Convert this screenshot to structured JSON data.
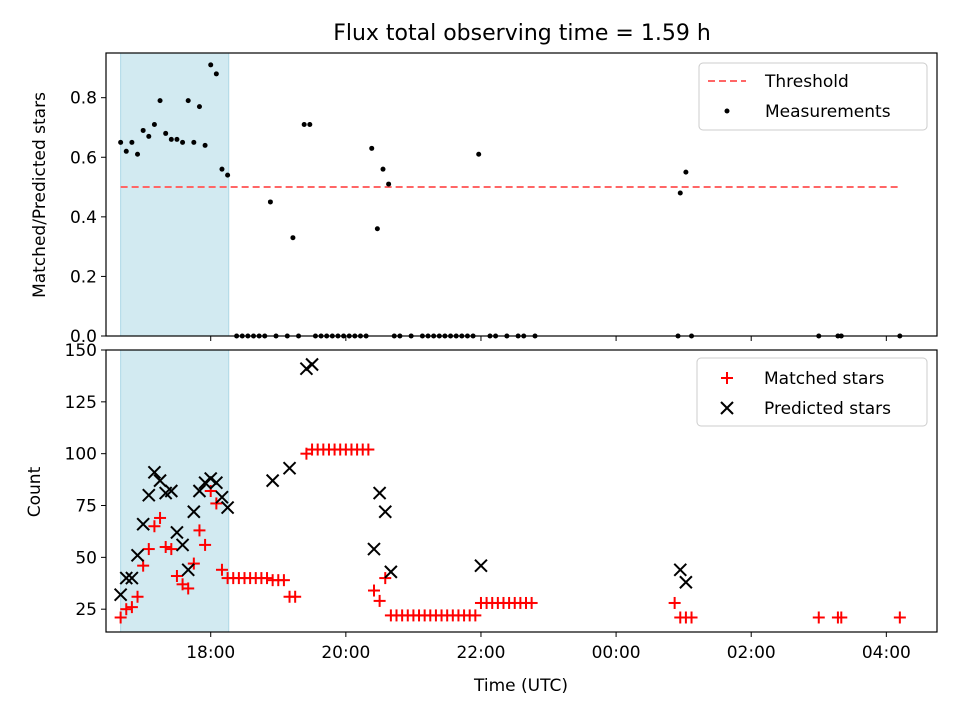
{
  "chart_data": [
    {
      "type": "scatter",
      "title": "Flux total observing time = 1.59 h",
      "ylabel": "Matched/Predicted stars",
      "xlabel": "",
      "xlim": [
        "16:27",
        "04:45"
      ],
      "ylim": [
        0,
        0.95
      ],
      "yticks": [
        "0.0",
        "0.2",
        "0.4",
        "0.6",
        "0.8"
      ],
      "ytick_values": [
        0,
        0.2,
        0.4,
        0.6,
        0.8
      ],
      "grid": false,
      "legend_position": "top-right",
      "highlight_band": {
        "start": "16:40",
        "end": "18:16",
        "color": "#add8e6"
      },
      "threshold": {
        "name": "Threshold",
        "value": 0.5,
        "start": "16:40",
        "end": "04:12",
        "color": "#ff6666",
        "style": "dashed"
      },
      "series": [
        {
          "name": "Measurements",
          "marker": "dot",
          "color": "#000000",
          "points": [
            [
              "16:40",
              0.65
            ],
            [
              "16:45",
              0.62
            ],
            [
              "16:50",
              0.65
            ],
            [
              "16:55",
              0.61
            ],
            [
              "17:00",
              0.69
            ],
            [
              "17:05",
              0.67
            ],
            [
              "17:10",
              0.71
            ],
            [
              "17:15",
              0.79
            ],
            [
              "17:20",
              0.68
            ],
            [
              "17:25",
              0.66
            ],
            [
              "17:30",
              0.66
            ],
            [
              "17:35",
              0.65
            ],
            [
              "17:40",
              0.79
            ],
            [
              "17:45",
              0.65
            ],
            [
              "17:50",
              0.77
            ],
            [
              "17:55",
              0.64
            ],
            [
              "18:00",
              0.91
            ],
            [
              "18:05",
              0.88
            ],
            [
              "18:10",
              0.56
            ],
            [
              "18:15",
              0.54
            ],
            [
              "18:23",
              0.0
            ],
            [
              "18:28",
              0.0
            ],
            [
              "18:33",
              0.0
            ],
            [
              "18:38",
              0.0
            ],
            [
              "18:43",
              0.0
            ],
            [
              "18:48",
              0.0
            ],
            [
              "18:53",
              0.45
            ],
            [
              "18:58",
              0.0
            ],
            [
              "19:08",
              0.0
            ],
            [
              "19:13",
              0.33
            ],
            [
              "19:18",
              0.0
            ],
            [
              "19:23",
              0.71
            ],
            [
              "19:28",
              0.71
            ],
            [
              "19:33",
              0.0
            ],
            [
              "19:38",
              0.0
            ],
            [
              "19:43",
              0.0
            ],
            [
              "19:48",
              0.0
            ],
            [
              "19:53",
              0.0
            ],
            [
              "19:58",
              0.0
            ],
            [
              "20:03",
              0.0
            ],
            [
              "20:08",
              0.0
            ],
            [
              "20:13",
              0.0
            ],
            [
              "20:18",
              0.0
            ],
            [
              "20:23",
              0.63
            ],
            [
              "20:28",
              0.36
            ],
            [
              "20:33",
              0.56
            ],
            [
              "20:38",
              0.51
            ],
            [
              "20:43",
              0.0
            ],
            [
              "20:48",
              0.0
            ],
            [
              "20:58",
              0.0
            ],
            [
              "21:08",
              0.0
            ],
            [
              "21:13",
              0.0
            ],
            [
              "21:18",
              0.0
            ],
            [
              "21:23",
              0.0
            ],
            [
              "21:28",
              0.0
            ],
            [
              "21:33",
              0.0
            ],
            [
              "21:38",
              0.0
            ],
            [
              "21:43",
              0.0
            ],
            [
              "21:48",
              0.0
            ],
            [
              "21:53",
              0.0
            ],
            [
              "21:58",
              0.61
            ],
            [
              "22:08",
              0.0
            ],
            [
              "22:13",
              0.0
            ],
            [
              "22:23",
              0.0
            ],
            [
              "22:33",
              0.0
            ],
            [
              "22:38",
              0.0
            ],
            [
              "22:48",
              0.0
            ],
            [
              "00:55",
              0.0
            ],
            [
              "00:57",
              0.48
            ],
            [
              "01:02",
              0.55
            ],
            [
              "01:07",
              0.0
            ],
            [
              "03:00",
              0.0
            ],
            [
              "03:17",
              0.0
            ],
            [
              "03:20",
              0.0
            ],
            [
              "04:12",
              0.0
            ]
          ]
        }
      ]
    },
    {
      "type": "scatter",
      "title": "",
      "ylabel": "Count",
      "xlabel": "Time (UTC)",
      "xlim": [
        "16:27",
        "04:45"
      ],
      "ylim": [
        14,
        150
      ],
      "yticks": [
        "25",
        "50",
        "75",
        "100",
        "125",
        "150"
      ],
      "ytick_values": [
        25,
        50,
        75,
        100,
        125,
        150
      ],
      "xticks": [
        "18:00",
        "20:00",
        "22:00",
        "00:00",
        "02:00",
        "04:00"
      ],
      "grid": false,
      "legend_position": "top-right",
      "highlight_band": {
        "start": "16:40",
        "end": "18:16",
        "color": "#add8e6"
      },
      "series": [
        {
          "name": "Matched stars",
          "marker": "plus",
          "color": "#ff0000",
          "points": [
            [
              "16:40",
              21
            ],
            [
              "16:45",
              25
            ],
            [
              "16:50",
              26
            ],
            [
              "16:55",
              31
            ],
            [
              "17:00",
              46
            ],
            [
              "17:05",
              54
            ],
            [
              "17:10",
              65
            ],
            [
              "17:15",
              69
            ],
            [
              "17:20",
              55
            ],
            [
              "17:25",
              54
            ],
            [
              "17:30",
              41
            ],
            [
              "17:35",
              37
            ],
            [
              "17:40",
              35
            ],
            [
              "17:45",
              47
            ],
            [
              "17:50",
              63
            ],
            [
              "17:55",
              56
            ],
            [
              "18:00",
              82
            ],
            [
              "18:05",
              76
            ],
            [
              "18:10",
              44
            ],
            [
              "18:15",
              40
            ],
            [
              "18:20",
              40
            ],
            [
              "18:25",
              40
            ],
            [
              "18:30",
              40
            ],
            [
              "18:35",
              40
            ],
            [
              "18:40",
              40
            ],
            [
              "18:45",
              40
            ],
            [
              "18:50",
              40
            ],
            [
              "18:55",
              39
            ],
            [
              "19:00",
              39
            ],
            [
              "19:05",
              39
            ],
            [
              "19:10",
              31
            ],
            [
              "19:15",
              31
            ],
            [
              "19:25",
              100
            ],
            [
              "19:30",
              102
            ],
            [
              "19:35",
              102
            ],
            [
              "19:40",
              102
            ],
            [
              "19:45",
              102
            ],
            [
              "19:50",
              102
            ],
            [
              "19:55",
              102
            ],
            [
              "20:00",
              102
            ],
            [
              "20:05",
              102
            ],
            [
              "20:10",
              102
            ],
            [
              "20:15",
              102
            ],
            [
              "20:20",
              102
            ],
            [
              "20:25",
              34
            ],
            [
              "20:30",
              29
            ],
            [
              "20:35",
              40
            ],
            [
              "20:40",
              22
            ],
            [
              "20:45",
              22
            ],
            [
              "20:50",
              22
            ],
            [
              "20:55",
              22
            ],
            [
              "21:00",
              22
            ],
            [
              "21:05",
              22
            ],
            [
              "21:10",
              22
            ],
            [
              "21:15",
              22
            ],
            [
              "21:20",
              22
            ],
            [
              "21:25",
              22
            ],
            [
              "21:30",
              22
            ],
            [
              "21:35",
              22
            ],
            [
              "21:40",
              22
            ],
            [
              "21:45",
              22
            ],
            [
              "21:50",
              22
            ],
            [
              "21:55",
              22
            ],
            [
              "22:00",
              28
            ],
            [
              "22:05",
              28
            ],
            [
              "22:10",
              28
            ],
            [
              "22:15",
              28
            ],
            [
              "22:20",
              28
            ],
            [
              "22:25",
              28
            ],
            [
              "22:30",
              28
            ],
            [
              "22:35",
              28
            ],
            [
              "22:40",
              28
            ],
            [
              "22:45",
              28
            ],
            [
              "00:52",
              28
            ],
            [
              "00:57",
              21
            ],
            [
              "01:02",
              21
            ],
            [
              "01:07",
              21
            ],
            [
              "03:00",
              21
            ],
            [
              "03:17",
              21
            ],
            [
              "03:20",
              21
            ],
            [
              "04:12",
              21
            ]
          ]
        },
        {
          "name": "Predicted stars",
          "marker": "x",
          "color": "#000000",
          "points": [
            [
              "16:40",
              32
            ],
            [
              "16:45",
              40
            ],
            [
              "16:50",
              40
            ],
            [
              "16:55",
              51
            ],
            [
              "17:00",
              66
            ],
            [
              "17:05",
              80
            ],
            [
              "17:10",
              91
            ],
            [
              "17:15",
              87
            ],
            [
              "17:20",
              81
            ],
            [
              "17:25",
              82
            ],
            [
              "17:30",
              62
            ],
            [
              "17:35",
              56
            ],
            [
              "17:40",
              44
            ],
            [
              "17:45",
              72
            ],
            [
              "17:50",
              82
            ],
            [
              "17:55",
              86
            ],
            [
              "18:00",
              88
            ],
            [
              "18:05",
              86
            ],
            [
              "18:10",
              79
            ],
            [
              "18:15",
              74
            ],
            [
              "18:55",
              87
            ],
            [
              "19:10",
              93
            ],
            [
              "19:25",
              141
            ],
            [
              "19:30",
              143
            ],
            [
              "20:25",
              54
            ],
            [
              "20:30",
              81
            ],
            [
              "20:35",
              72
            ],
            [
              "20:40",
              43
            ],
            [
              "22:00",
              46
            ],
            [
              "00:57",
              44
            ],
            [
              "01:02",
              38
            ]
          ]
        }
      ]
    }
  ]
}
